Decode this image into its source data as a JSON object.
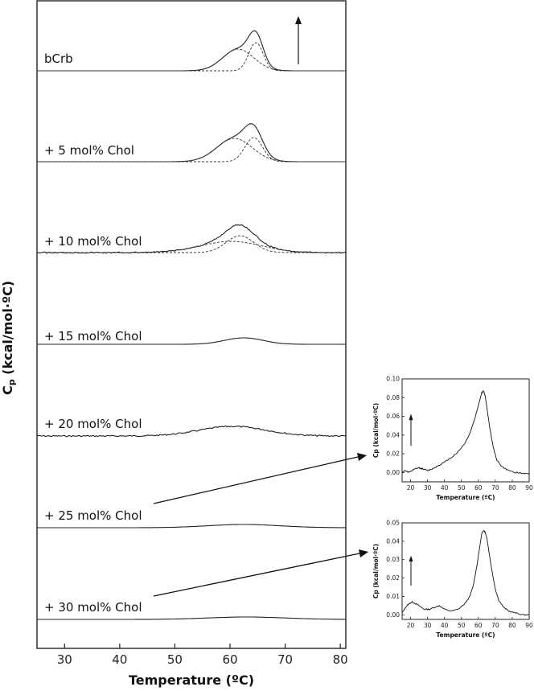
{
  "chart_data": [
    {
      "type": "line",
      "xlabel": "Temperature (ºC)",
      "ylabel_main": "C",
      "ylabel_sub": "p",
      "ylabel_rest": " (kcal/mol·ºC)",
      "xlim": [
        25,
        81
      ],
      "xticks": [
        30,
        40,
        50,
        60,
        70,
        80
      ],
      "scale_arrow": true,
      "series": [
        {
          "name": "bCrb",
          "components": 2,
          "peaks": [
            {
              "center": 61.5,
              "width": 2.8,
              "height": 27
            },
            {
              "center": 64.7,
              "width": 1.3,
              "height": 35
            }
          ]
        },
        {
          "name": "+ 5 mol% Chol",
          "components": 2,
          "peaks": [
            {
              "center": 60.8,
              "width": 3.2,
              "height": 29
            },
            {
              "center": 64.3,
              "width": 1.6,
              "height": 30
            }
          ]
        },
        {
          "name": "+ 10 mol% Chol",
          "components": 2,
          "peaks": [
            {
              "center": 60.2,
              "width": 5.5,
              "height": 14
            },
            {
              "center": 61.8,
              "width": 2.5,
              "height": 21
            }
          ]
        },
        {
          "name": "+ 15 mol% Chol",
          "components": 0,
          "peaks": [
            {
              "center": 62.5,
              "width": 3.5,
              "height": 8
            }
          ]
        },
        {
          "name": "+ 20 mol% Chol",
          "components": 0,
          "peaks": [
            {
              "center": 60.5,
              "width": 6.0,
              "height": 12
            }
          ]
        },
        {
          "name": "+ 25 mol% Chol",
          "components": 0,
          "peaks": [
            {
              "center": 62.5,
              "width": 6.5,
              "height": 4
            }
          ]
        },
        {
          "name": "+ 30 mol% Chol",
          "components": 0,
          "peaks": [
            {
              "center": 63.0,
              "width": 7.0,
              "height": 3
            }
          ]
        }
      ]
    },
    {
      "type": "line",
      "xlabel": "Temperature (ºC)",
      "ylabel": "Cp (kcal/mol·ºC)",
      "xlim": [
        15,
        90
      ],
      "ylim": [
        -0.01,
        0.1
      ],
      "xticks": [
        20,
        30,
        40,
        50,
        60,
        70,
        80,
        90
      ],
      "yticks": [
        "0.00",
        "0.02",
        "0.04",
        "0.06",
        "0.08",
        "0.10"
      ],
      "series": [
        {
          "x": [
            15,
            17,
            19,
            21,
            23,
            25,
            27,
            30,
            33,
            36,
            40,
            44,
            48,
            52,
            55,
            58,
            60,
            62,
            63,
            64,
            65,
            67,
            69,
            71,
            74,
            78,
            82,
            86,
            90
          ],
          "y": [
            0.001,
            0.002,
            0.0,
            0.002,
            0.004,
            0.005,
            0.004,
            0.002,
            0.004,
            0.007,
            0.011,
            0.016,
            0.022,
            0.031,
            0.042,
            0.058,
            0.072,
            0.085,
            0.087,
            0.082,
            0.07,
            0.045,
            0.025,
            0.013,
            0.006,
            0.002,
            0.0,
            -0.001,
            -0.001
          ]
        }
      ],
      "points_from": "+ 25 mol% Chol"
    },
    {
      "type": "line",
      "xlabel": "Temperature (ºC)",
      "ylabel": "Cp (kcal/mol·ºC)",
      "xlim": [
        15,
        90
      ],
      "ylim": [
        -0.0025,
        0.05
      ],
      "xticks": [
        20,
        30,
        40,
        50,
        60,
        70,
        80,
        90
      ],
      "yticks": [
        "0.00",
        "0.01",
        "0.02",
        "0.03",
        "0.04",
        "0.05"
      ],
      "series": [
        {
          "x": [
            15,
            17,
            19,
            21,
            23,
            25,
            28,
            31,
            34,
            37,
            40,
            44,
            48,
            52,
            55,
            57,
            59,
            61,
            62,
            63,
            64,
            65,
            66,
            68,
            70,
            72,
            75,
            78,
            82,
            86,
            90
          ],
          "y": [
            0.001,
            0.004,
            0.006,
            0.007,
            0.006,
            0.005,
            0.003,
            0.003,
            0.004,
            0.005,
            0.003,
            0.002,
            0.003,
            0.006,
            0.01,
            0.016,
            0.026,
            0.038,
            0.044,
            0.046,
            0.045,
            0.042,
            0.036,
            0.024,
            0.014,
            0.008,
            0.004,
            0.002,
            0.001,
            0.0,
            0.0
          ]
        }
      ],
      "points_from": "+ 30 mol% Chol"
    }
  ]
}
